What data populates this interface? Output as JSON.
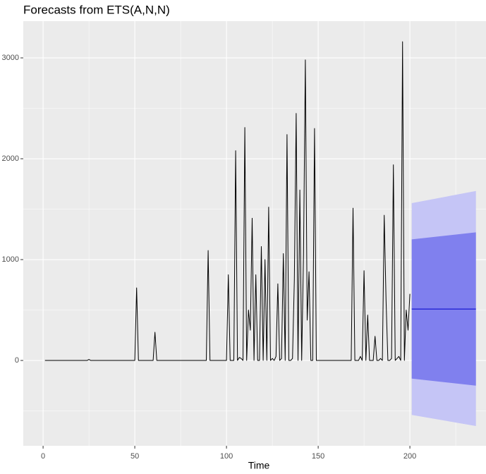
{
  "chart_data": {
    "type": "line",
    "title": "Forecasts from ETS(A,N,N)",
    "x_label": "Time",
    "x": [
      1,
      2,
      3,
      4,
      5,
      6,
      7,
      8,
      9,
      10,
      11,
      12,
      13,
      14,
      15,
      16,
      17,
      18,
      19,
      20,
      21,
      22,
      23,
      24,
      25,
      26,
      27,
      28,
      29,
      30,
      31,
      32,
      33,
      34,
      35,
      36,
      37,
      38,
      39,
      40,
      41,
      42,
      43,
      44,
      45,
      46,
      47,
      48,
      49,
      50,
      51,
      52,
      53,
      54,
      55,
      56,
      57,
      58,
      59,
      60,
      61,
      62,
      63,
      64,
      65,
      66,
      67,
      68,
      69,
      70,
      71,
      72,
      73,
      74,
      75,
      76,
      77,
      78,
      79,
      80,
      81,
      82,
      83,
      84,
      85,
      86,
      87,
      88,
      89,
      90,
      91,
      92,
      93,
      94,
      95,
      96,
      97,
      98,
      99,
      100,
      101,
      102,
      103,
      104,
      105,
      106,
      107,
      108,
      109,
      110,
      111,
      112,
      113,
      114,
      115,
      116,
      117,
      118,
      119,
      120,
      121,
      122,
      123,
      124,
      125,
      126,
      127,
      128,
      129,
      130,
      131,
      132,
      133,
      134,
      135,
      136,
      137,
      138,
      139,
      140,
      141,
      142,
      143,
      144,
      145,
      146,
      147,
      148,
      149,
      150,
      151,
      152,
      153,
      154,
      155,
      156,
      157,
      158,
      159,
      160,
      161,
      162,
      163,
      164,
      165,
      166,
      167,
      168,
      169,
      170,
      171,
      172,
      173,
      174,
      175,
      176,
      177,
      178,
      179,
      180,
      181,
      182,
      183,
      184,
      185,
      186,
      187,
      188,
      189,
      190,
      191,
      192,
      193,
      194,
      195,
      196,
      197,
      198,
      199,
      200
    ],
    "values": [
      0,
      0,
      0,
      0,
      0,
      0,
      0,
      0,
      0,
      0,
      0,
      0,
      0,
      0,
      0,
      0,
      0,
      0,
      0,
      0,
      0,
      0,
      0,
      0,
      10,
      0,
      0,
      0,
      0,
      0,
      0,
      0,
      0,
      0,
      0,
      0,
      0,
      0,
      0,
      0,
      0,
      0,
      0,
      0,
      0,
      0,
      0,
      0,
      0,
      0,
      720,
      0,
      0,
      0,
      0,
      0,
      0,
      0,
      0,
      0,
      280,
      0,
      0,
      0,
      0,
      0,
      0,
      0,
      0,
      0,
      0,
      0,
      0,
      0,
      0,
      0,
      0,
      0,
      0,
      0,
      0,
      0,
      0,
      0,
      0,
      0,
      0,
      0,
      0,
      1090,
      0,
      0,
      0,
      0,
      0,
      0,
      0,
      0,
      0,
      0,
      850,
      0,
      0,
      0,
      2080,
      0,
      30,
      20,
      0,
      2310,
      0,
      500,
      300,
      1410,
      0,
      850,
      0,
      0,
      1130,
      0,
      1000,
      0,
      1520,
      0,
      20,
      0,
      40,
      760,
      0,
      20,
      1060,
      0,
      2240,
      0,
      0,
      20,
      800,
      2450,
      0,
      1690,
      0,
      1050,
      2980,
      400,
      880,
      0,
      0,
      2300,
      0,
      0,
      0,
      0,
      0,
      0,
      0,
      0,
      0,
      0,
      0,
      0,
      0,
      0,
      0,
      0,
      0,
      0,
      0,
      0,
      1510,
      0,
      0,
      0,
      40,
      0,
      890,
      0,
      450,
      0,
      0,
      0,
      240,
      0,
      0,
      20,
      0,
      1440,
      600,
      0,
      0,
      20,
      1940,
      0,
      20,
      40,
      0,
      3160,
      0,
      500,
      300,
      660
    ],
    "color": "#000000",
    "forecast": {
      "x": [
        201,
        236
      ],
      "mean": [
        510,
        510
      ],
      "lo80": [
        -180,
        -250
      ],
      "hi80": [
        1200,
        1270
      ],
      "lo95": [
        -540,
        -650
      ],
      "hi95": [
        1560,
        1680
      ],
      "mean_color": "#0000cc",
      "color80": "#8080ee",
      "color95": "#c5c5f6"
    },
    "xlim": [
      -10.8,
      241.5
    ],
    "ylim": [
      -846,
      3364
    ],
    "xticks": [
      0,
      50,
      100,
      150,
      200
    ],
    "yticks": [
      0,
      1000,
      2000,
      3000
    ],
    "x_minor_ticks": [
      25,
      75,
      125,
      175,
      225
    ],
    "y_minor_ticks": [
      -500,
      500,
      1500,
      2500
    ],
    "grid": true
  }
}
